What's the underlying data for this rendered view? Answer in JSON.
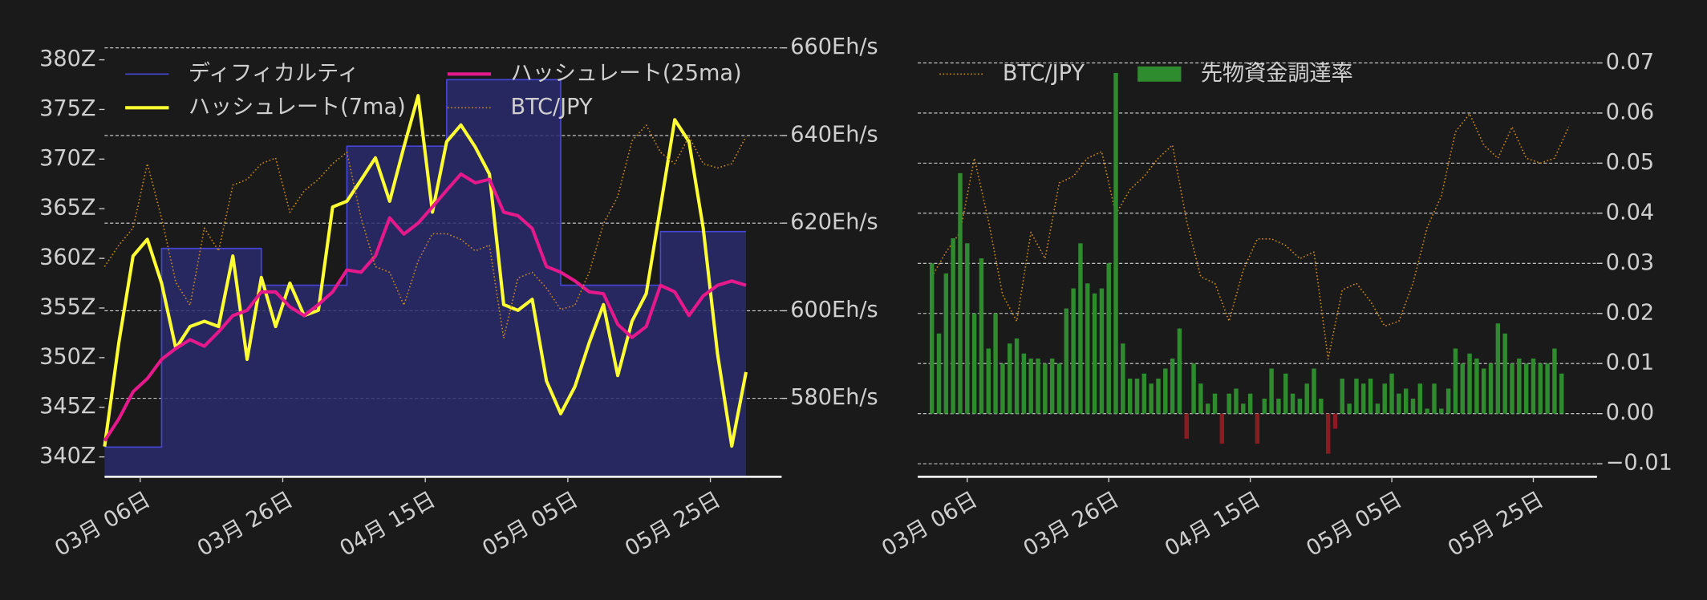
{
  "chart_data": [
    {
      "type": "line",
      "x": [
        "03-01",
        "03-03",
        "03-05",
        "03-07",
        "03-09",
        "03-11",
        "03-13",
        "03-15",
        "03-17",
        "03-19",
        "03-21",
        "03-23",
        "03-25",
        "03-27",
        "03-29",
        "03-31",
        "04-02",
        "04-04",
        "04-06",
        "04-08",
        "04-10",
        "04-12",
        "04-14",
        "04-16",
        "04-18",
        "04-20",
        "04-22",
        "04-24",
        "04-26",
        "04-28",
        "04-30",
        "05-02",
        "05-04",
        "05-06",
        "05-08",
        "05-10",
        "05-12",
        "05-14",
        "05-16",
        "05-18",
        "05-20",
        "05-22",
        "05-24",
        "05-26",
        "05-28",
        "05-30"
      ],
      "xlim": [
        "03-01",
        "06-04"
      ],
      "xticks": [
        {
          "value": "03-06",
          "label": "03月 06日"
        },
        {
          "value": "03-26",
          "label": "03月 26日"
        },
        {
          "value": "04-15",
          "label": "04月 15日"
        },
        {
          "value": "05-05",
          "label": "05月 05日"
        },
        {
          "value": "05-25",
          "label": "05月 25日"
        }
      ],
      "ylim": [
        338,
        381.2
      ],
      "yticks": [
        {
          "value": 340,
          "label": "340Z"
        },
        {
          "value": 345,
          "label": "345Z"
        },
        {
          "value": 350,
          "label": "350Z"
        },
        {
          "value": 355,
          "label": "355Z"
        },
        {
          "value": 360,
          "label": "360Z"
        },
        {
          "value": 365,
          "label": "365Z"
        },
        {
          "value": 370,
          "label": "370Z"
        },
        {
          "value": 375,
          "label": "375Z"
        },
        {
          "value": 380,
          "label": "380Z"
        }
      ],
      "y2lim": [
        562.1,
        660
      ],
      "y2ticks": [
        {
          "value": 580,
          "label": "580Eh/s"
        },
        {
          "value": 600,
          "label": "600Eh/s"
        },
        {
          "value": 620,
          "label": "620Eh/s"
        },
        {
          "value": 640,
          "label": "640Eh/s"
        },
        {
          "value": 660,
          "label": "660Eh/s"
        }
      ],
      "y3lim": [
        8500000,
        11500000
      ],
      "grid": "y2",
      "legend": "upper left",
      "series": [
        {
          "name": "ディフィカルティ",
          "color": "#4646d8",
          "fill_color": "#2b2b6e",
          "drawstyle": "steps-post",
          "linewidth": 1.2,
          "values": [
            341,
            341,
            341,
            341,
            361,
            361,
            361,
            361,
            361,
            361,
            361,
            357.3,
            357.3,
            357.3,
            357.3,
            357.3,
            357.3,
            371.3,
            371.3,
            371.3,
            371.3,
            371.3,
            371.3,
            371.3,
            378,
            378,
            378,
            378,
            378,
            378,
            378,
            378,
            357.3,
            357.3,
            357.3,
            357.3,
            357.3,
            357.3,
            357.3,
            362.7,
            362.7,
            362.7,
            362.7,
            362.7,
            362.7,
            362.7
          ]
        },
        {
          "name": "ハッシュレート(7ma)",
          "color": "#ffff33",
          "axis": "y2",
          "linewidth": 3,
          "values": [
            569,
            592.7,
            612.5,
            616.3,
            606.3,
            591.4,
            596.4,
            597.6,
            596.4,
            612.5,
            588.9,
            607.6,
            596.4,
            606.3,
            598.9,
            600.1,
            623.7,
            625,
            629.9,
            634.9,
            625,
            637.4,
            649.1,
            622.5,
            638.6,
            642.4,
            637.4,
            631.2,
            601.4,
            600.1,
            602.6,
            584,
            576.5,
            582.7,
            592.7,
            601.4,
            585.2,
            597.6,
            603.9,
            623.7,
            643.6,
            638.6,
            618.8,
            590.2,
            569.1,
            586
          ]
        },
        {
          "name": "ハッシュレート(25ma)",
          "color": "#e6198c",
          "axis": "y2",
          "linewidth": 3,
          "values": [
            570.3,
            575.3,
            581.5,
            584.5,
            588.9,
            591.4,
            593.4,
            591.9,
            595.2,
            598.9,
            600.1,
            604.3,
            604.3,
            600.9,
            598.9,
            601.4,
            604.3,
            609.3,
            608.8,
            612.5,
            621.2,
            617.5,
            620,
            623.7,
            627.5,
            631.2,
            629.2,
            630,
            622.5,
            621.7,
            618.8,
            610.1,
            608.8,
            606.8,
            604.3,
            603.9,
            596.9,
            593.9,
            596.4,
            605.8,
            604.3,
            598.9,
            603.4,
            605.8,
            606.8,
            605.8
          ]
        },
        {
          "name": "BTC/JPY",
          "color": "#c8861a",
          "axis": "y3",
          "linestyle": "dotted",
          "linewidth": 1.2,
          "values": [
            9970000,
            10120000,
            10240000,
            10690000,
            10310000,
            9860000,
            9700000,
            10240000,
            10080000,
            10540000,
            10580000,
            10690000,
            10730000,
            10350000,
            10500000,
            10580000,
            10690000,
            10770000,
            10310000,
            9970000,
            9930000,
            9700000,
            10010000,
            10200000,
            10200000,
            10160000,
            10080000,
            10120000,
            9470000,
            9890000,
            9930000,
            9820000,
            9670000,
            9700000,
            9930000,
            10270000,
            10460000,
            10850000,
            10960000,
            10770000,
            10690000,
            10880000,
            10690000,
            10660000,
            10690000,
            10880000
          ]
        }
      ]
    },
    {
      "type": "bar",
      "xlim": [
        "02-28",
        "06-03"
      ],
      "xticks": [
        {
          "value": "03-06",
          "label": "03月 06日"
        },
        {
          "value": "03-26",
          "label": "03月 26日"
        },
        {
          "value": "04-15",
          "label": "04月 15日"
        },
        {
          "value": "05-05",
          "label": "05月 05日"
        },
        {
          "value": "05-25",
          "label": "05月 25日"
        }
      ],
      "ylim": [
        -0.0126,
        0.073
      ],
      "yticks": [
        {
          "value": -0.01,
          "label": "−0.01"
        },
        {
          "value": 0,
          "label": "0.00"
        },
        0.01,
        0.02,
        0.03,
        0.04,
        0.05,
        0.06,
        0.07
      ],
      "yaxis_side": "right",
      "y3lim": [
        8755000,
        11360000
      ],
      "grid": "y",
      "legend": "upper left",
      "series": [
        {
          "name": "BTC/JPY",
          "type": "line",
          "color": "#c8861a",
          "axis": "y3",
          "linestyle": "dotted",
          "linewidth": 1.2,
          "x": [
            "03-01",
            "03-03",
            "03-05",
            "03-07",
            "03-09",
            "03-11",
            "03-13",
            "03-15",
            "03-17",
            "03-19",
            "03-21",
            "03-23",
            "03-25",
            "03-27",
            "03-29",
            "03-31",
            "04-02",
            "04-04",
            "04-06",
            "04-08",
            "04-10",
            "04-12",
            "04-14",
            "04-16",
            "04-18",
            "04-20",
            "04-22",
            "04-24",
            "04-26",
            "04-28",
            "04-30",
            "05-02",
            "05-04",
            "05-06",
            "05-08",
            "05-10",
            "05-12",
            "05-14",
            "05-16",
            "05-18",
            "05-20",
            "05-22",
            "05-24",
            "05-26",
            "05-28",
            "05-30"
          ],
          "values": [
            9970000,
            10120000,
            10240000,
            10690000,
            10310000,
            9860000,
            9700000,
            10240000,
            10080000,
            10540000,
            10580000,
            10690000,
            10730000,
            10350000,
            10500000,
            10580000,
            10690000,
            10770000,
            10310000,
            9970000,
            9930000,
            9700000,
            10010000,
            10200000,
            10200000,
            10160000,
            10080000,
            10120000,
            9470000,
            9890000,
            9930000,
            9820000,
            9670000,
            9700000,
            9930000,
            10270000,
            10460000,
            10850000,
            10960000,
            10770000,
            10690000,
            10880000,
            10690000,
            10660000,
            10690000,
            10880000
          ]
        },
        {
          "name": "先物資金調達率",
          "type": "bar",
          "color": "#2e8b2e",
          "negative_color": "#8b1a22",
          "x": [
            "03-01",
            "03-02",
            "03-03",
            "03-04",
            "03-05",
            "03-06",
            "03-07",
            "03-08",
            "03-09",
            "03-10",
            "03-11",
            "03-12",
            "03-13",
            "03-14",
            "03-15",
            "03-16",
            "03-17",
            "03-18",
            "03-19",
            "03-20",
            "03-21",
            "03-22",
            "03-23",
            "03-24",
            "03-25",
            "03-26",
            "03-27",
            "03-28",
            "03-29",
            "03-30",
            "03-31",
            "04-01",
            "04-02",
            "04-03",
            "04-04",
            "04-05",
            "04-06",
            "04-07",
            "04-08",
            "04-09",
            "04-10",
            "04-11",
            "04-12",
            "04-13",
            "04-14",
            "04-15",
            "04-16",
            "04-17",
            "04-18",
            "04-19",
            "04-20",
            "04-21",
            "04-22",
            "04-23",
            "04-24",
            "04-25",
            "04-26",
            "04-27",
            "04-28",
            "04-29",
            "04-30",
            "05-01",
            "05-02",
            "05-03",
            "05-04",
            "05-05",
            "05-06",
            "05-07",
            "05-08",
            "05-09",
            "05-10",
            "05-11",
            "05-12",
            "05-13",
            "05-14",
            "05-15",
            "05-16",
            "05-17",
            "05-18",
            "05-19",
            "05-20",
            "05-21",
            "05-22",
            "05-23",
            "05-24",
            "05-25",
            "05-26",
            "05-27",
            "05-28",
            "05-29"
          ],
          "values": [
            0.03,
            0.016,
            0.028,
            0.035,
            0.048,
            0.034,
            0.02,
            0.031,
            0.013,
            0.02,
            0.01,
            0.014,
            0.015,
            0.012,
            0.011,
            0.011,
            0.01,
            0.011,
            0.01,
            0.021,
            0.025,
            0.034,
            0.026,
            0.024,
            0.025,
            0.03,
            0.068,
            0.014,
            0.007,
            0.007,
            0.008,
            0.006,
            0.007,
            0.009,
            0.011,
            0.017,
            -0.005,
            0.01,
            0.006,
            0.002,
            0.004,
            -0.006,
            0.004,
            0.005,
            0.002,
            0.004,
            -0.006,
            0.003,
            0.009,
            0.003,
            0.008,
            0.004,
            0.003,
            0.006,
            0.009,
            0.003,
            -0.008,
            -0.003,
            0.007,
            0.002,
            0.007,
            0.006,
            0.007,
            0.002,
            0.006,
            0.008,
            0.004,
            0.005,
            0.003,
            0.006,
            0.001,
            0.006,
            0.001,
            0.005,
            0.013,
            0.01,
            0.012,
            0.011,
            0.009,
            0.01,
            0.018,
            0.016,
            0.01,
            0.011,
            0.01,
            0.011,
            0.01,
            0.01,
            0.013,
            0.008
          ]
        }
      ]
    }
  ]
}
